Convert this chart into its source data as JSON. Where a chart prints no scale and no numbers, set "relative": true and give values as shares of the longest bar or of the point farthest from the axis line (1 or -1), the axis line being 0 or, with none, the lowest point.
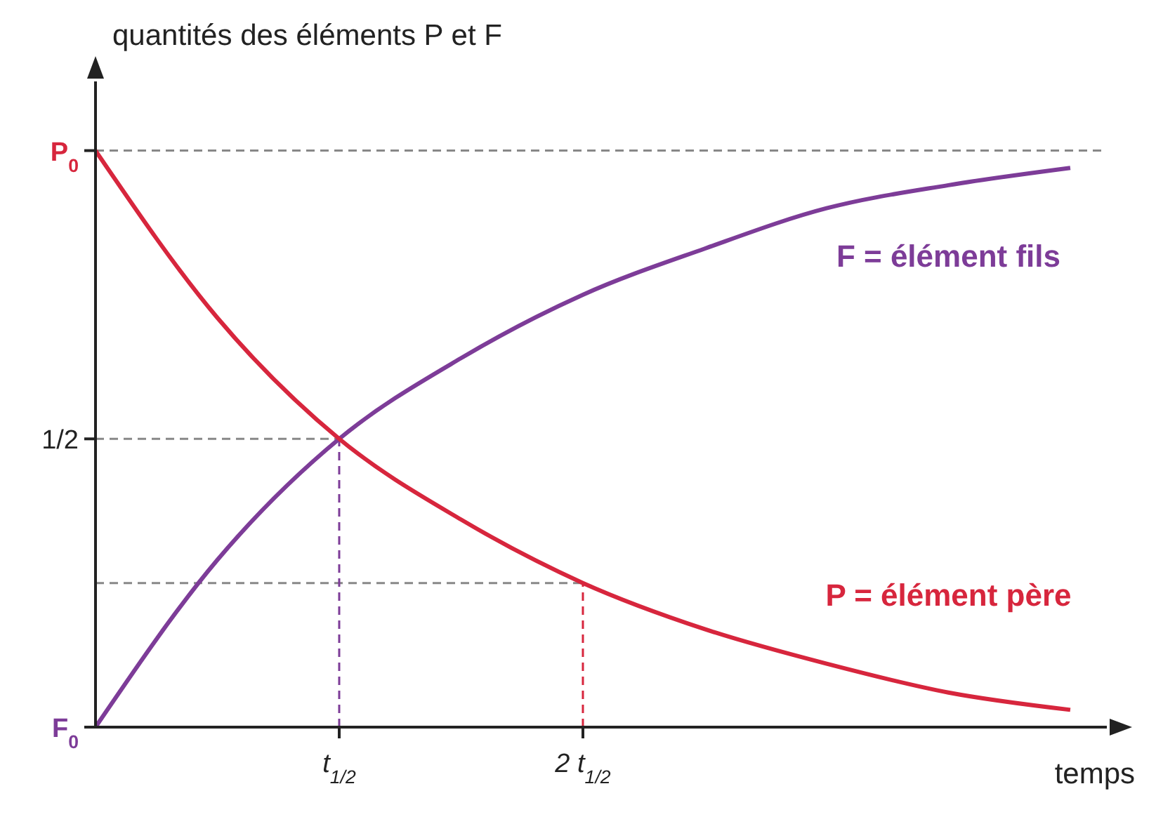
{
  "chart_data": {
    "type": "line",
    "ylabel": "quantités des éléments P et F",
    "xlabel": "temps",
    "relative": true,
    "categories": [
      null,
      null,
      "t$_{1/2}$",
      null,
      "2 t$_{1/2}$",
      null,
      null,
      null,
      null
    ],
    "annotations": [
      "F$_{0}$"
    ],
    "grid": false,
    "legend": false,
    "marker": "none",
    "line_style": "solid",
    "series": [
      {
        "name": "F = élément fils",
        "color": "#7d3c98",
        "values": [
          0,
          0.29,
          0.5,
          0.64,
          0.75,
          0.83,
          0.9,
          0.94,
          0.97
        ]
      },
      {
        "name": "P = élément père",
        "color": "#d7263d",
        "values": [
          1,
          0.71,
          0.5,
          0.36,
          0.25,
          0.17,
          0.11,
          0.06,
          0.03
        ]
      }
    ],
    "ref_lines": [
      {
        "axis": "y",
        "value": 1,
        "label": "P$_{0}$",
        "color": "#888888",
        "line_style": "dashed"
      },
      {
        "axis": "y",
        "value": 0.5,
        "label": "1/2",
        "color": "#888888",
        "line_style": "dashed"
      },
      {
        "axis": "y",
        "value": 0.25,
        "color": "#888888",
        "line_style": "dashed"
      },
      {
        "axis": "x",
        "value": "t$_{1/2}$",
        "color": "#7d3c98",
        "line_style": "dashed"
      },
      {
        "axis": "x",
        "value": "2 t$_{1/2}$",
        "color": "#d7263d",
        "line_style": "dashed"
      }
    ]
  }
}
